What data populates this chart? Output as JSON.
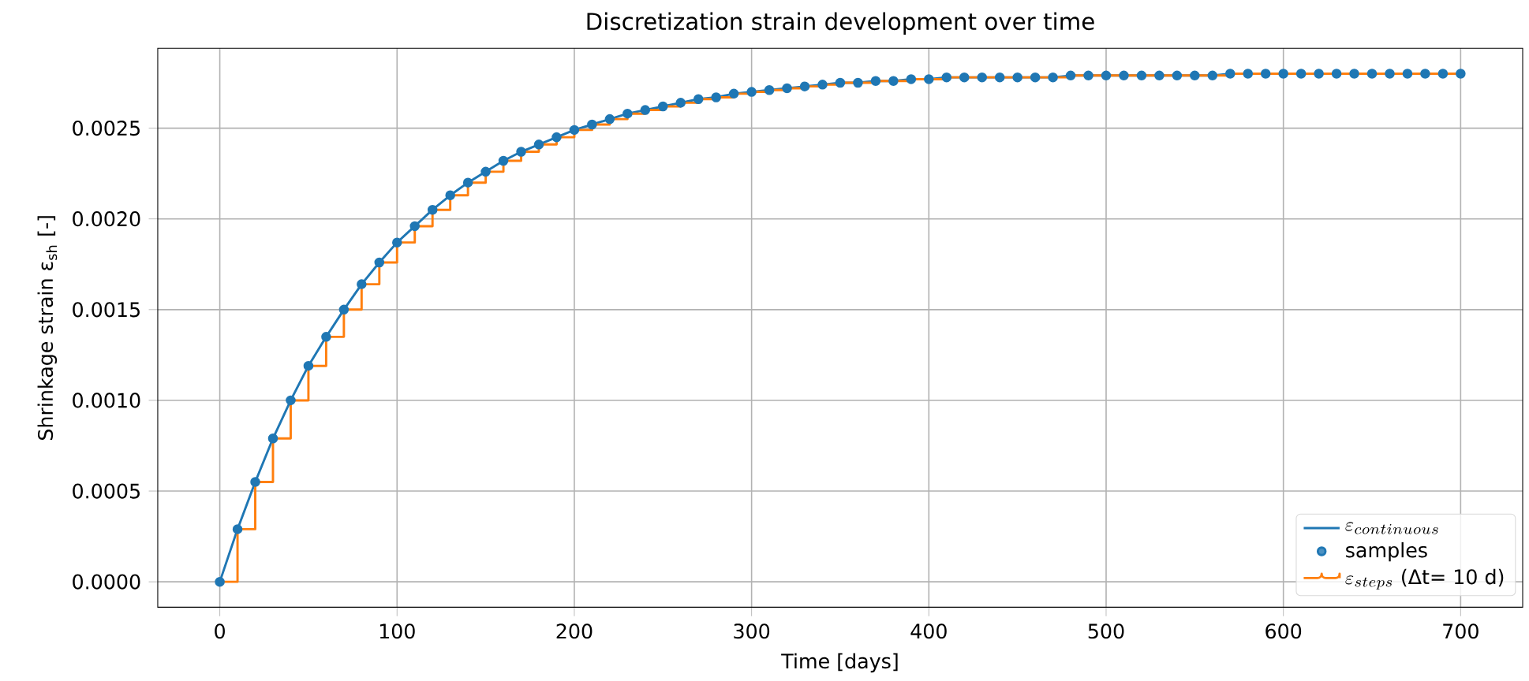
{
  "chart_data": {
    "type": "line",
    "title": "Discretization strain development over time",
    "xlabel": "Time [days]",
    "ylabel": "Shrinkage strain ε$_{sh}$ [-]",
    "x": [
      0,
      10,
      20,
      30,
      40,
      50,
      60,
      70,
      80,
      90,
      100,
      110,
      120,
      130,
      140,
      150,
      160,
      170,
      180,
      190,
      200,
      210,
      220,
      230,
      240,
      250,
      260,
      270,
      280,
      290,
      300,
      310,
      320,
      330,
      340,
      350,
      360,
      370,
      380,
      390,
      400,
      410,
      420,
      430,
      440,
      450,
      460,
      470,
      480,
      490,
      500,
      510,
      520,
      530,
      540,
      550,
      560,
      570,
      580,
      590,
      600,
      610,
      620,
      630,
      640,
      650,
      660,
      670,
      680,
      690,
      700
    ],
    "series": [
      {
        "name": "\\varepsilon_{continuous}",
        "marker": "none",
        "color": "#1f77b4",
        "values": [
          0,
          0.00029,
          0.00055,
          0.00079,
          0.001,
          0.00119,
          0.00135,
          0.0015,
          0.00164,
          0.00176,
          0.00187,
          0.00196,
          0.00205,
          0.00213,
          0.0022,
          0.00226,
          0.00232,
          0.00237,
          0.00241,
          0.00245,
          0.00249,
          0.00252,
          0.00255,
          0.00258,
          0.0026,
          0.00262,
          0.00264,
          0.00266,
          0.00267,
          0.00269,
          0.0027,
          0.00271,
          0.00272,
          0.00273,
          0.00274,
          0.00275,
          0.00275,
          0.00276,
          0.00276,
          0.00277,
          0.00277,
          0.00278,
          0.00278,
          0.00278,
          0.00278,
          0.00278,
          0.00278,
          0.00278,
          0.00279,
          0.00279,
          0.00279,
          0.00279,
          0.00279,
          0.00279,
          0.00279,
          0.00279,
          0.00279,
          0.0028,
          0.0028,
          0.0028,
          0.0028,
          0.0028,
          0.0028,
          0.0028,
          0.0028,
          0.0028,
          0.0028,
          0.0028,
          0.0028,
          0.0028,
          0.0028
        ]
      },
      {
        "name": "samples",
        "type": "scatter",
        "marker": "circle",
        "color": "#1f77b4",
        "values": [
          0,
          0.00029,
          0.00055,
          0.00079,
          0.001,
          0.00119,
          0.00135,
          0.0015,
          0.00164,
          0.00176,
          0.00187,
          0.00196,
          0.00205,
          0.00213,
          0.0022,
          0.00226,
          0.00232,
          0.00237,
          0.00241,
          0.00245,
          0.00249,
          0.00252,
          0.00255,
          0.00258,
          0.0026,
          0.00262,
          0.00264,
          0.00266,
          0.00267,
          0.00269,
          0.0027,
          0.00271,
          0.00272,
          0.00273,
          0.00274,
          0.00275,
          0.00275,
          0.00276,
          0.00276,
          0.00277,
          0.00277,
          0.00278,
          0.00278,
          0.00278,
          0.00278,
          0.00278,
          0.00278,
          0.00278,
          0.00279,
          0.00279,
          0.00279,
          0.00279,
          0.00279,
          0.00279,
          0.00279,
          0.00279,
          0.00279,
          0.0028,
          0.0028,
          0.0028,
          0.0028,
          0.0028,
          0.0028,
          0.0028,
          0.0028,
          0.0028,
          0.0028,
          0.0028,
          0.0028,
          0.0028,
          0.0028
        ]
      },
      {
        "name": "\\varepsilon_{steps}\\ \\mbox{(Δt= 10 d)}",
        "type": "step",
        "marker": "none",
        "color": "#ff7f0e",
        "values": [
          0,
          0.00029,
          0.00055,
          0.00079,
          0.001,
          0.00119,
          0.00135,
          0.0015,
          0.00164,
          0.00176,
          0.00187,
          0.00196,
          0.00205,
          0.00213,
          0.0022,
          0.00226,
          0.00232,
          0.00237,
          0.00241,
          0.00245,
          0.00249,
          0.00252,
          0.00255,
          0.00258,
          0.0026,
          0.00262,
          0.00264,
          0.00266,
          0.00267,
          0.00269,
          0.0027,
          0.00271,
          0.00272,
          0.00273,
          0.00274,
          0.00275,
          0.00275,
          0.00276,
          0.00276,
          0.00277,
          0.00277,
          0.00278,
          0.00278,
          0.00278,
          0.00278,
          0.00278,
          0.00278,
          0.00278,
          0.00279,
          0.00279,
          0.00279,
          0.00279,
          0.00279,
          0.00279,
          0.00279,
          0.00279,
          0.00279,
          0.0028,
          0.0028,
          0.0028,
          0.0028,
          0.0028,
          0.0028,
          0.0028,
          0.0028,
          0.0028,
          0.0028,
          0.0028,
          0.0028,
          0.0028,
          0.0028
        ]
      }
    ],
    "xlim": [
      -35,
      735
    ],
    "ylim": [
      -0.00014,
      0.00294
    ],
    "xticks": [
      0,
      100,
      200,
      300,
      400,
      500,
      600,
      700
    ],
    "yticks": [
      {
        "value": 0,
        "label": "0.0000"
      },
      {
        "value": 0.0005,
        "label": "0.0005"
      },
      {
        "value": 0.001,
        "label": "0.0010"
      },
      {
        "value": 0.0015,
        "label": "0.0015"
      },
      {
        "value": 0.002,
        "label": "0.0020"
      },
      {
        "value": 0.0025,
        "label": "0.0025"
      }
    ],
    "grid": true,
    "legend": "bottom right"
  }
}
